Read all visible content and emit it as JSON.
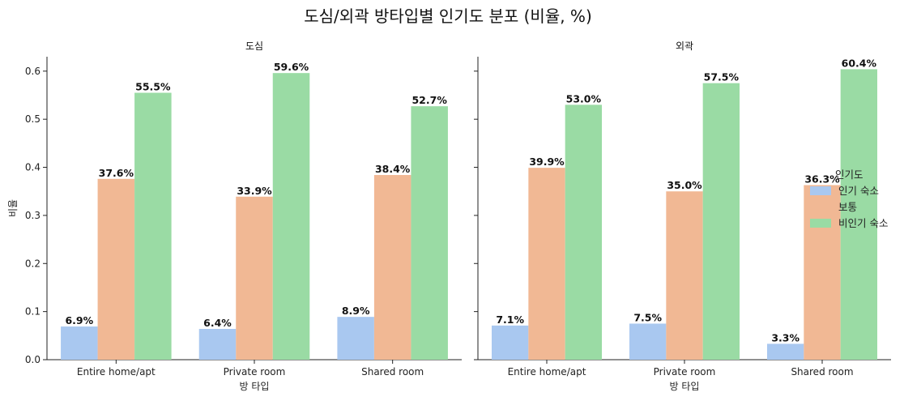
{
  "chart_data": {
    "type": "bar",
    "title": "도심/외곽 방타입별 인기도 분포 (비율, %)",
    "ylabel": "비율",
    "xlabel": "방 타입",
    "ylim": [
      0,
      0.63
    ],
    "yticks": [
      "0.0",
      "0.1",
      "0.2",
      "0.3",
      "0.4",
      "0.5",
      "0.6"
    ],
    "legend": {
      "title": "인기도",
      "position": "right",
      "entries": [
        "인기 숙소",
        "보통",
        "비인기 숙소"
      ]
    },
    "colors": [
      "#a9c8f0",
      "#f1b894",
      "#9adba4"
    ],
    "panels": [
      {
        "title": "도심",
        "categories": [
          "Entire home/apt",
          "Private room",
          "Shared room"
        ],
        "series": [
          {
            "name": "인기 숙소",
            "values": [
              0.069,
              0.064,
              0.089
            ],
            "labels": [
              "6.9%",
              "6.4%",
              "8.9%"
            ]
          },
          {
            "name": "보통",
            "values": [
              0.376,
              0.339,
              0.384
            ],
            "labels": [
              "37.6%",
              "33.9%",
              "38.4%"
            ]
          },
          {
            "name": "비인기 숙소",
            "values": [
              0.555,
              0.596,
              0.527
            ],
            "labels": [
              "55.5%",
              "59.6%",
              "52.7%"
            ]
          }
        ]
      },
      {
        "title": "외곽",
        "categories": [
          "Entire home/apt",
          "Private room",
          "Shared room"
        ],
        "series": [
          {
            "name": "인기 숙소",
            "values": [
              0.071,
              0.075,
              0.033
            ],
            "labels": [
              "7.1%",
              "7.5%",
              "3.3%"
            ]
          },
          {
            "name": "보통",
            "values": [
              0.399,
              0.35,
              0.363
            ],
            "labels": [
              "39.9%",
              "35.0%",
              "36.3%"
            ]
          },
          {
            "name": "비인기 숙소",
            "values": [
              0.53,
              0.575,
              0.604
            ],
            "labels": [
              "53.0%",
              "57.5%",
              "60.4%"
            ]
          }
        ]
      }
    ]
  }
}
